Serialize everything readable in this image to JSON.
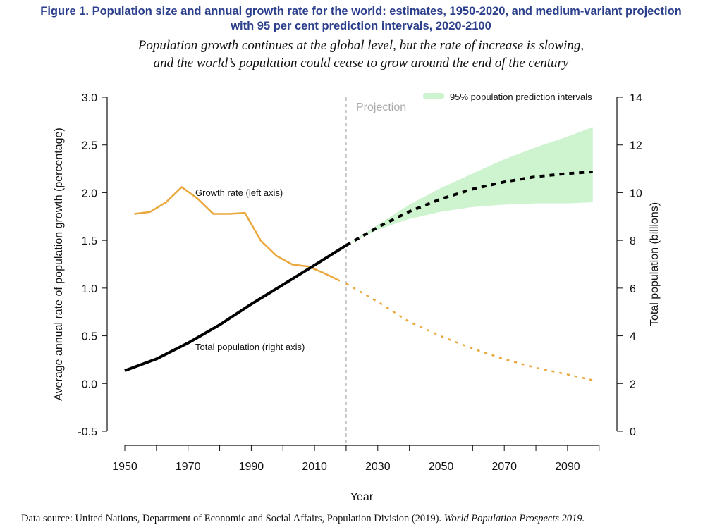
{
  "title_line1": "Figure 1. Population size and annual growth rate for the world: estimates, 1950-2020, and medium-variant projection",
  "title_line2": "with 95 per cent prediction intervals, 2020-2100",
  "subtitle_line1": "Population growth continues at the global level, but the rate of increase is slowing,",
  "subtitle_line2": "and the world’s population could cease to grow around the end of the century",
  "source_text": "Data source: United Nations, Department of Economic and Social Affairs, Population Division (2019). ",
  "source_italic": "World Population Prospects 2019.",
  "chart_data": {
    "type": "line",
    "xlabel": "Year",
    "ylabel_left": "Average annual rate of population growth (percentage)",
    "ylabel_right": "Total population (billions)",
    "xlim": [
      1950,
      2100
    ],
    "ylim_left": [
      -0.5,
      3.0
    ],
    "ylim_right": [
      0,
      14
    ],
    "x_ticks": [
      1950,
      1960,
      1970,
      1980,
      1990,
      2000,
      2010,
      2020,
      2030,
      2040,
      2050,
      2060,
      2070,
      2080,
      2090,
      2100
    ],
    "x_tick_labels": [
      "1950",
      "1970",
      "1990",
      "2010",
      "2030",
      "2050",
      "2070",
      "2090"
    ],
    "x_tick_label_years": [
      1950,
      1970,
      1990,
      2010,
      2030,
      2050,
      2070,
      2090
    ],
    "y_left_ticks": [
      "3.0",
      "2.5",
      "2.0",
      "1.5",
      "1.0",
      "0.5",
      "0.0",
      "-0.5"
    ],
    "y_right_ticks": [
      "14",
      "12",
      "10",
      "8",
      "6",
      "4",
      "2",
      "0"
    ],
    "projection_label": "Projection",
    "projection_year": 2020,
    "legend": {
      "label": "95% population prediction intervals",
      "placement": "top-right"
    },
    "colors": {
      "growth": "#eaa73b",
      "population": "#000000",
      "band": "#cdf3cf",
      "projection_line": "#aaaaaa"
    },
    "series": [
      {
        "name": "Growth rate (left axis)",
        "axis": "left",
        "style": "solid",
        "x": [
          1953,
          1958,
          1963,
          1968,
          1973,
          1978,
          1983,
          1988,
          1993,
          1998,
          2003,
          2008,
          2013,
          2018
        ],
        "y": [
          1.78,
          1.8,
          1.9,
          2.06,
          1.94,
          1.78,
          1.78,
          1.79,
          1.5,
          1.34,
          1.25,
          1.23,
          1.16,
          1.08
        ]
      },
      {
        "axis": "left",
        "style": "dashed",
        "x": [
          2020,
          2030,
          2040,
          2050,
          2060,
          2070,
          2080,
          2090,
          2098
        ],
        "y": [
          1.05,
          0.86,
          0.65,
          0.5,
          0.37,
          0.26,
          0.17,
          0.1,
          0.04
        ]
      },
      {
        "name": "Total population (right axis)",
        "axis": "right",
        "style": "solid",
        "x": [
          1950,
          1960,
          1970,
          1980,
          1990,
          2000,
          2010,
          2020
        ],
        "y": [
          2.54,
          3.03,
          3.7,
          4.46,
          5.33,
          6.14,
          6.96,
          7.79
        ]
      },
      {
        "axis": "right",
        "style": "dashed",
        "x": [
          2020,
          2030,
          2040,
          2050,
          2060,
          2070,
          2080,
          2090,
          2098
        ],
        "y": [
          7.79,
          8.55,
          9.21,
          9.74,
          10.15,
          10.45,
          10.67,
          10.8,
          10.87
        ]
      }
    ],
    "band": {
      "axis": "right",
      "x": [
        2020,
        2030,
        2040,
        2050,
        2060,
        2070,
        2080,
        2090,
        2098
      ],
      "lower": [
        7.79,
        8.45,
        8.9,
        9.2,
        9.4,
        9.5,
        9.55,
        9.55,
        9.6
      ],
      "upper": [
        7.79,
        8.65,
        9.5,
        10.2,
        10.8,
        11.4,
        11.9,
        12.35,
        12.75
      ]
    }
  }
}
